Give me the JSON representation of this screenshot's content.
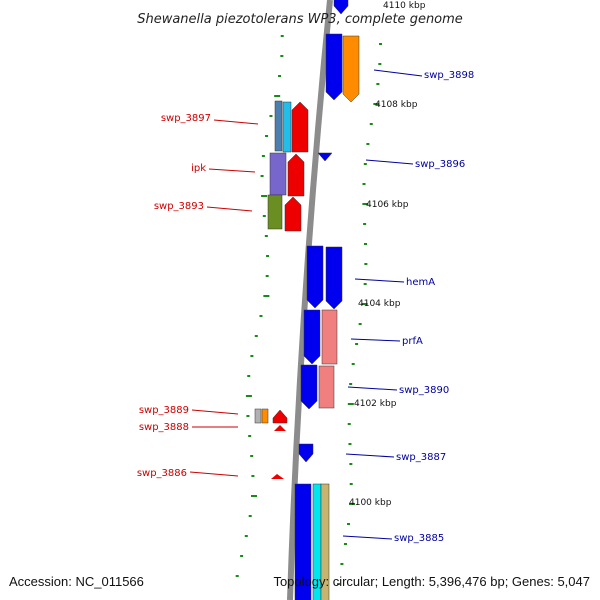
{
  "title": "Shewanella piezotolerans WP3, complete genome",
  "footer": {
    "accession": "Accession: NC_011566",
    "topology": "Topology: circular; Length: 5,396,476 bp; Genes: 5,047"
  },
  "colors": {
    "backbone": "#8c8c8c",
    "forward_gene": "#0000ee",
    "reverse_gene": "#ee0000",
    "tick": "#1a8a1a",
    "label_forward": "#00009e",
    "label_reverse": "#cc0000"
  },
  "scale_labels": [
    "4110 kbp",
    "4108 kbp",
    "4106 kbp",
    "4104 kbp",
    "4102 kbp",
    "4100 kbp"
  ],
  "reverse_strand_genes": [
    {
      "label": "swp_3897",
      "colors": [
        "#4a7fb0",
        "#22bde9",
        "#ee0000"
      ]
    },
    {
      "label": "ipk",
      "colors": [
        "#7766cc",
        "#ee0000"
      ]
    },
    {
      "label": "swp_3893",
      "colors": [
        "#6b8e23",
        "#ee0000"
      ]
    },
    {
      "label": "swp_3889",
      "colors": [
        "#b0b0b0",
        "#ff8c00",
        "#ee0000"
      ]
    },
    {
      "label": "swp_3888",
      "colors": [
        "#ee0000"
      ]
    },
    {
      "label": "swp_3886",
      "colors": [
        "#ee0000"
      ]
    }
  ],
  "forward_strand_genes": [
    {
      "label": "swp_3898",
      "colors": [
        "#0000ee",
        "#ff8c00"
      ]
    },
    {
      "label": "swp_3896",
      "colors": [
        "#0000ee"
      ]
    },
    {
      "label": "hemA",
      "colors": [
        "#0000ee",
        "#0000ee"
      ]
    },
    {
      "label": "prfA",
      "colors": [
        "#0000ee",
        "#f08080"
      ]
    },
    {
      "label": "swp_3890",
      "colors": [
        "#0000ee",
        "#f08080"
      ]
    },
    {
      "label": "swp_3887",
      "colors": [
        "#0000ee"
      ]
    },
    {
      "label": "swp_3885",
      "colors": [
        "#0000ee",
        "#00e5ee",
        "#c8b46e"
      ]
    }
  ]
}
